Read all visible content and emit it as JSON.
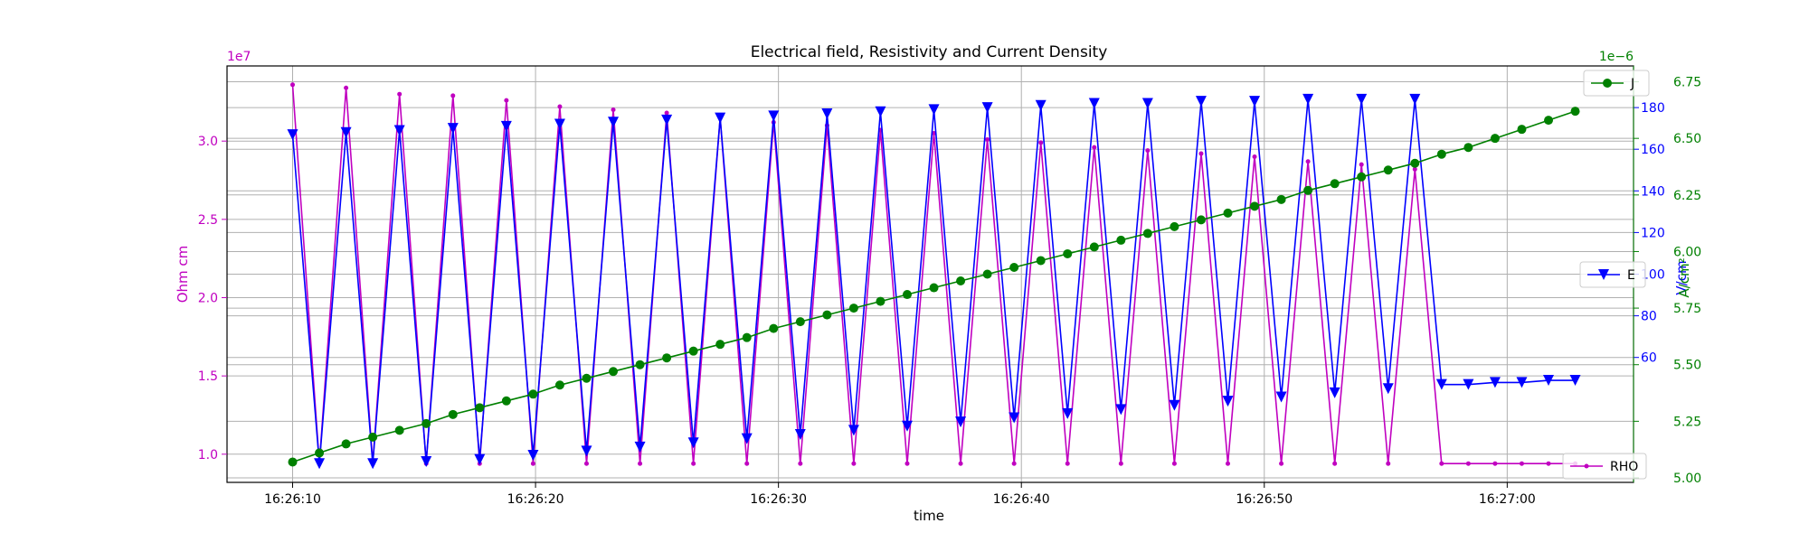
{
  "chart_data": {
    "type": "line",
    "title": "Electrical field, Resistivity and Current Density",
    "xlabel": "time",
    "grid": true,
    "x_tick_labels": [
      "16:26:10",
      "16:26:20",
      "16:26:30",
      "16:26:40",
      "16:26:50",
      "16:27:00"
    ],
    "x_tick_seconds": [
      10,
      20,
      30,
      40,
      50,
      60
    ],
    "xlim_seconds": [
      7.3,
      65.2
    ],
    "axes": {
      "rho": {
        "label": "Ohm cm",
        "offset_text": "1e7",
        "color": "#c000c0",
        "ylim": [
          0.82,
          3.48
        ],
        "ticks": [
          1.0,
          1.5,
          2.0,
          2.5,
          3.0
        ],
        "tick_labels": [
          "1.0",
          "1.5",
          "2.0",
          "2.5",
          "3.0"
        ]
      },
      "e": {
        "label": "V/cm",
        "color": "#0000ff",
        "ylim": [
          0,
          200
        ],
        "ticks": [
          60,
          80,
          100,
          120,
          140,
          160,
          180
        ],
        "tick_labels": [
          "60",
          "80",
          "100",
          "120",
          "140",
          "160",
          "180"
        ]
      },
      "j": {
        "label": "A/cm²",
        "offset_text": "1e−6",
        "color": "#008000",
        "ylim": [
          4.98,
          6.82
        ],
        "ticks": [
          5.0,
          5.25,
          5.5,
          5.75,
          6.0,
          6.25,
          6.5,
          6.75
        ],
        "tick_labels": [
          "5.00",
          "5.25",
          "5.50",
          "5.75",
          "6.00",
          "6.25",
          "6.50",
          "6.75"
        ]
      }
    },
    "series": [
      {
        "name": "RHO",
        "axis": "rho",
        "color": "#c000c0",
        "marker": "point",
        "legend_position": "bottom-right",
        "x_seconds": [
          10.0,
          11.1,
          12.2,
          13.3,
          14.4,
          15.5,
          16.6,
          17.7,
          18.8,
          19.9,
          21.0,
          22.1,
          23.2,
          24.3,
          25.4,
          26.5,
          27.6,
          28.7,
          29.8,
          30.9,
          32.0,
          33.1,
          34.2,
          35.3,
          36.4,
          37.5,
          38.6,
          39.7,
          40.8,
          41.9,
          43.0,
          44.1,
          45.2,
          46.3,
          47.4,
          48.5,
          49.6,
          50.7,
          51.8,
          52.9,
          54.0,
          55.1,
          56.2,
          57.3,
          58.4,
          59.5,
          60.6,
          61.7,
          62.8
        ],
        "values": [
          3.36,
          0.94,
          3.34,
          0.94,
          3.3,
          0.94,
          3.29,
          0.94,
          3.26,
          0.94,
          3.22,
          0.94,
          3.2,
          0.94,
          3.18,
          0.94,
          3.15,
          0.94,
          3.12,
          0.94,
          3.1,
          0.94,
          3.07,
          0.94,
          3.05,
          0.94,
          3.01,
          0.94,
          2.99,
          0.94,
          2.96,
          0.94,
          2.94,
          0.94,
          2.92,
          0.94,
          2.9,
          0.94,
          2.87,
          0.94,
          2.85,
          0.94,
          2.82,
          0.94,
          0.94,
          0.94,
          0.94,
          0.94,
          0.94
        ]
      },
      {
        "name": "E",
        "axis": "e",
        "color": "#0000ff",
        "marker": "triangle-down",
        "legend_position": "center-right",
        "x_seconds": [
          10.0,
          11.1,
          12.2,
          13.3,
          14.4,
          15.5,
          16.6,
          17.7,
          18.8,
          19.9,
          21.0,
          22.1,
          23.2,
          24.3,
          25.4,
          26.5,
          27.6,
          28.7,
          29.8,
          30.9,
          32.0,
          33.1,
          34.2,
          35.3,
          36.4,
          37.5,
          38.6,
          39.7,
          40.8,
          41.9,
          43.0,
          44.1,
          45.2,
          46.3,
          47.4,
          48.5,
          49.6,
          50.7,
          51.8,
          52.9,
          54.0,
          55.1,
          56.2,
          57.3,
          58.4,
          59.5,
          60.6,
          61.7,
          62.8
        ],
        "values": [
          167,
          9,
          168,
          9,
          169,
          10,
          170,
          11,
          171,
          13,
          172,
          15,
          173,
          17,
          174,
          19,
          175,
          21,
          176,
          23,
          177,
          25,
          178,
          27,
          179,
          29,
          180,
          31,
          181,
          33,
          182,
          35,
          182,
          37,
          183,
          39,
          183,
          41,
          184,
          43,
          184,
          45,
          184,
          47,
          47,
          48,
          48,
          49,
          49
        ]
      },
      {
        "name": "J",
        "axis": "j",
        "color": "#008000",
        "marker": "circle",
        "legend_position": "top-right",
        "x_seconds": [
          10.0,
          11.1,
          12.2,
          13.3,
          14.4,
          15.5,
          16.6,
          17.7,
          18.8,
          19.9,
          21.0,
          22.1,
          23.2,
          24.3,
          25.4,
          26.5,
          27.6,
          28.7,
          29.8,
          30.9,
          32.0,
          33.1,
          34.2,
          35.3,
          36.4,
          37.5,
          38.6,
          39.7,
          40.8,
          41.9,
          43.0,
          44.1,
          45.2,
          46.3,
          47.4,
          48.5,
          49.6,
          50.7,
          51.8,
          52.9,
          54.0,
          55.1,
          56.2,
          57.3,
          58.4,
          59.5,
          60.6,
          61.7,
          62.8
        ],
        "values": [
          5.07,
          5.11,
          5.15,
          5.18,
          5.21,
          5.24,
          5.28,
          5.31,
          5.34,
          5.37,
          5.41,
          5.44,
          5.47,
          5.5,
          5.53,
          5.56,
          5.59,
          5.62,
          5.66,
          5.69,
          5.72,
          5.75,
          5.78,
          5.81,
          5.84,
          5.87,
          5.9,
          5.93,
          5.96,
          5.99,
          6.02,
          6.05,
          6.08,
          6.11,
          6.14,
          6.17,
          6.2,
          6.23,
          6.27,
          6.3,
          6.33,
          6.36,
          6.39,
          6.43,
          6.46,
          6.5,
          6.54,
          6.58,
          6.62
        ]
      }
    ]
  }
}
